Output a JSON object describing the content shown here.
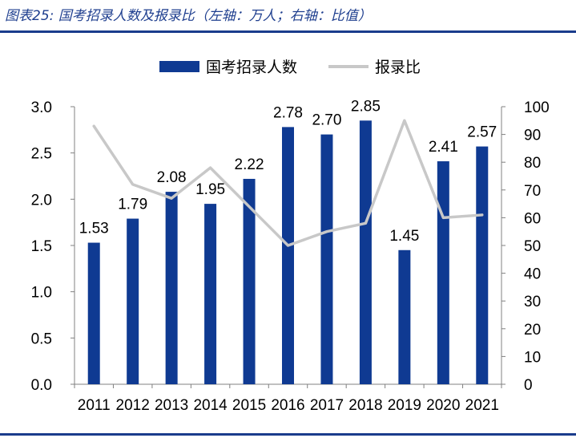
{
  "figure": {
    "title": "图表25: 国考招录人数及报录比（左轴：万人；右轴：比值）"
  },
  "colors": {
    "bar": "#0f3a92",
    "line": "#c8c8c8",
    "title": "#1f3f8f",
    "rule": "#1a3c8c",
    "axis": "#808080",
    "text": "#000000"
  },
  "chart_data": {
    "type": "bar",
    "title": "",
    "categories": [
      "2011",
      "2012",
      "2013",
      "2014",
      "2015",
      "2016",
      "2017",
      "2018",
      "2019",
      "2020",
      "2021"
    ],
    "series": [
      {
        "name": "国考招录人数",
        "type": "bar",
        "axis": "left",
        "values": [
          1.53,
          1.79,
          2.08,
          1.95,
          2.22,
          2.78,
          2.7,
          2.85,
          1.45,
          2.41,
          2.57
        ],
        "labels": [
          "1.53",
          "1.79",
          "2.08",
          "1.95",
          "2.22",
          "2.78",
          "2.70",
          "2.85",
          "1.45",
          "2.41",
          "2.57"
        ]
      },
      {
        "name": "报录比",
        "type": "line",
        "axis": "right",
        "values": [
          93,
          72,
          67,
          78,
          64,
          50,
          55,
          58,
          95,
          60,
          61
        ]
      }
    ],
    "left_axis": {
      "ylim": [
        0,
        3
      ],
      "ticks": [
        "0.0",
        "0.5",
        "1.0",
        "1.5",
        "2.0",
        "2.5",
        "3.0"
      ]
    },
    "right_axis": {
      "ylim": [
        0,
        100
      ],
      "ticks": [
        "0",
        "10",
        "20",
        "30",
        "40",
        "50",
        "60",
        "70",
        "80",
        "90",
        "100"
      ]
    },
    "legend_position": "top-center",
    "grid": false
  }
}
